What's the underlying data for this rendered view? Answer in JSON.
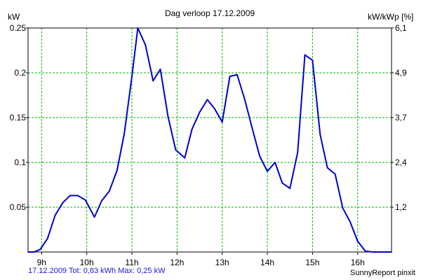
{
  "chart_data": {
    "type": "line",
    "title": "Dag  verloop 17.12.2009",
    "ylabel_left": "kW",
    "ylabel_right": "kW/kWp [%]",
    "ylim": [
      0,
      0.25
    ],
    "xlim": [
      8.7,
      16.75
    ],
    "x_ticks": [
      {
        "value": 9,
        "label": "9h"
      },
      {
        "value": 10,
        "label": "10h"
      },
      {
        "value": 11,
        "label": "11h"
      },
      {
        "value": 12,
        "label": "12h"
      },
      {
        "value": 13,
        "label": "13h"
      },
      {
        "value": 14,
        "label": "14h"
      },
      {
        "value": 15,
        "label": "15h"
      },
      {
        "value": 16,
        "label": "16h"
      }
    ],
    "y_ticks_left": [
      {
        "value": 0.05,
        "label": "0.05"
      },
      {
        "value": 0.1,
        "label": "0.1"
      },
      {
        "value": 0.15,
        "label": "0.15"
      },
      {
        "value": 0.2,
        "label": "0.2"
      },
      {
        "value": 0.25,
        "label": "0.25"
      }
    ],
    "y_ticks_right": [
      {
        "value": 0.05,
        "label": "1,2"
      },
      {
        "value": 0.1,
        "label": "2,4"
      },
      {
        "value": 0.15,
        "label": "3,7"
      },
      {
        "value": 0.2,
        "label": "4,9"
      },
      {
        "value": 0.25,
        "label": "6,1"
      }
    ],
    "grid": true,
    "series_color": "#0000cc",
    "grid_color": "#00bb00",
    "series": [
      {
        "values": [
          [
            8.7,
            0.0
          ],
          [
            8.83,
            0.0
          ],
          [
            8.97,
            0.003
          ],
          [
            9.13,
            0.015
          ],
          [
            9.3,
            0.041
          ],
          [
            9.47,
            0.055
          ],
          [
            9.63,
            0.063
          ],
          [
            9.8,
            0.063
          ],
          [
            9.97,
            0.058
          ],
          [
            10.17,
            0.039
          ],
          [
            10.33,
            0.057
          ],
          [
            10.5,
            0.068
          ],
          [
            10.67,
            0.091
          ],
          [
            10.83,
            0.132
          ],
          [
            11.0,
            0.196
          ],
          [
            11.13,
            0.25
          ],
          [
            11.3,
            0.231
          ],
          [
            11.47,
            0.191
          ],
          [
            11.63,
            0.204
          ],
          [
            11.8,
            0.151
          ],
          [
            11.97,
            0.114
          ],
          [
            12.17,
            0.105
          ],
          [
            12.33,
            0.137
          ],
          [
            12.5,
            0.156
          ],
          [
            12.67,
            0.17
          ],
          [
            12.83,
            0.16
          ],
          [
            13.0,
            0.145
          ],
          [
            13.17,
            0.196
          ],
          [
            13.33,
            0.198
          ],
          [
            13.5,
            0.17
          ],
          [
            13.67,
            0.137
          ],
          [
            13.83,
            0.107
          ],
          [
            14.0,
            0.09
          ],
          [
            14.17,
            0.1
          ],
          [
            14.33,
            0.077
          ],
          [
            14.5,
            0.071
          ],
          [
            14.67,
            0.111
          ],
          [
            14.83,
            0.22
          ],
          [
            15.0,
            0.214
          ],
          [
            15.17,
            0.131
          ],
          [
            15.33,
            0.094
          ],
          [
            15.5,
            0.087
          ],
          [
            15.67,
            0.049
          ],
          [
            15.83,
            0.034
          ],
          [
            16.0,
            0.012
          ],
          [
            16.17,
            0.001
          ],
          [
            16.33,
            0.0
          ],
          [
            16.75,
            0.0
          ]
        ]
      }
    ]
  },
  "footer": {
    "summary": "17.12.2009 Tot: 0,83 kWh Max: 0,25 kW",
    "brand": "SunnyReport pinxit"
  }
}
